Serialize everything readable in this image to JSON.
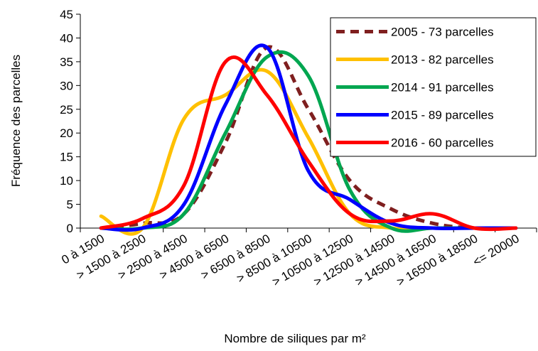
{
  "chart_data": {
    "type": "line",
    "x_label": "Nombre de siliques par m²",
    "y_label": "Fréquence des parcelles",
    "categories": [
      "0 à 1500",
      "> 1500 à 2500",
      "> 2500 à 4500",
      "> 4500 à 6500",
      "> 6500 à 8500",
      "> 8500 à 10500",
      "> 10500 à 12500",
      "> 12500 à 14500",
      "> 14500 à 16500",
      "> 16500 à 18500",
      "<= 20000"
    ],
    "series": [
      {
        "name": "2005 - 73 parcelles",
        "color": "#7f1f1f",
        "dashed": true,
        "values": [
          0,
          1,
          3,
          18,
          38,
          25,
          10,
          4,
          1,
          0,
          0
        ]
      },
      {
        "name": "2013 - 82 parcelles",
        "color": "#ffc000",
        "values": [
          2.5,
          0,
          23,
          28,
          33,
          19,
          3,
          0,
          0,
          0,
          0
        ]
      },
      {
        "name": "2014 - 91 parcelles",
        "color": "#00a650",
        "values": [
          0,
          0,
          3,
          20,
          36,
          32,
          8,
          0,
          0,
          0,
          0
        ]
      },
      {
        "name": "2015 - 89 parcelles",
        "color": "#0000ff",
        "values": [
          0,
          0,
          5,
          26,
          38,
          12,
          6,
          1,
          0,
          0,
          0
        ]
      },
      {
        "name": "2016 - 60 parcelles",
        "color": "#ff0000",
        "values": [
          0,
          2,
          9,
          35,
          28,
          14,
          3,
          1.5,
          3,
          0,
          0
        ]
      }
    ],
    "ylim": [
      0,
      45
    ],
    "yticks": [
      0,
      5,
      10,
      15,
      20,
      25,
      30,
      35,
      40,
      45
    ],
    "legend": "top-right"
  }
}
